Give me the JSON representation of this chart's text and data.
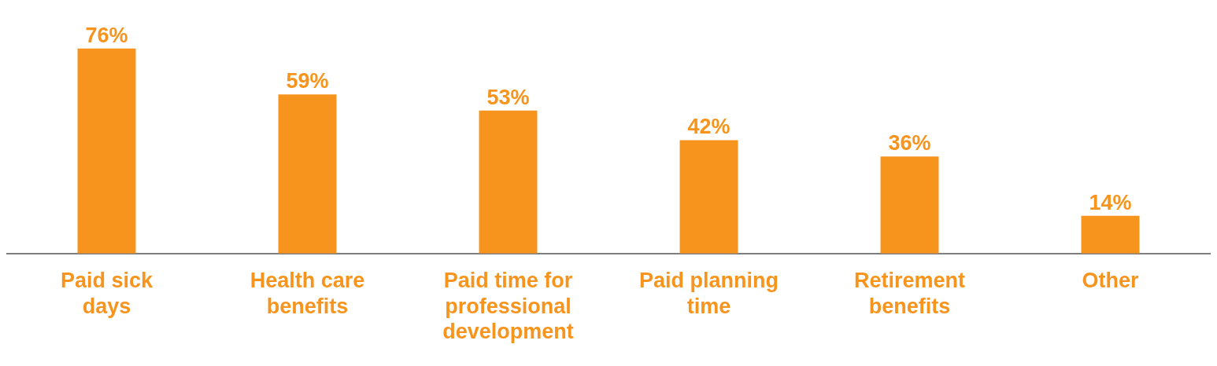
{
  "chart_data": {
    "type": "bar",
    "categories": [
      "Paid sick days",
      "Health care benefits",
      "Paid time for professional development",
      "Paid planning time",
      "Retirement benefits",
      "Other"
    ],
    "values": [
      76,
      59,
      53,
      42,
      36,
      14
    ],
    "value_labels": [
      "76%",
      "59%",
      "53%",
      "42%",
      "36%",
      "14%"
    ],
    "color": "#f7941d",
    "grid": false,
    "legend": false,
    "tick_labels": "x"
  }
}
